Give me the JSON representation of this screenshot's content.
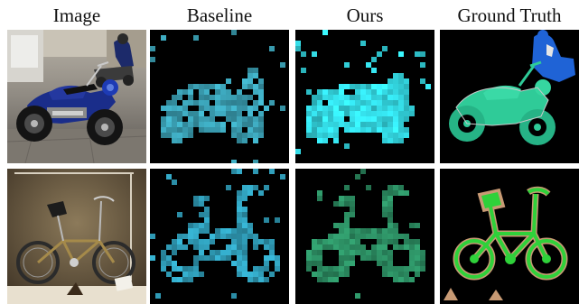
{
  "figure": {
    "columns": [
      {
        "label": "Image"
      },
      {
        "label": "Baseline"
      },
      {
        "label": "Ours"
      },
      {
        "label": "Ground Truth"
      }
    ]
  },
  "colors": {
    "baseline_row1": "#3a9fb3",
    "ours_row1": "#32d3dd",
    "gt_row1_motorcycle": "#2fcb98",
    "gt_row1_person": "#1f63d6",
    "baseline_row2": "#2f9bb6",
    "ours_row2": "#2b8a60",
    "gt_row2_bicycle": "#2fd13a",
    "gt_row2_outline": "#c89a74"
  }
}
